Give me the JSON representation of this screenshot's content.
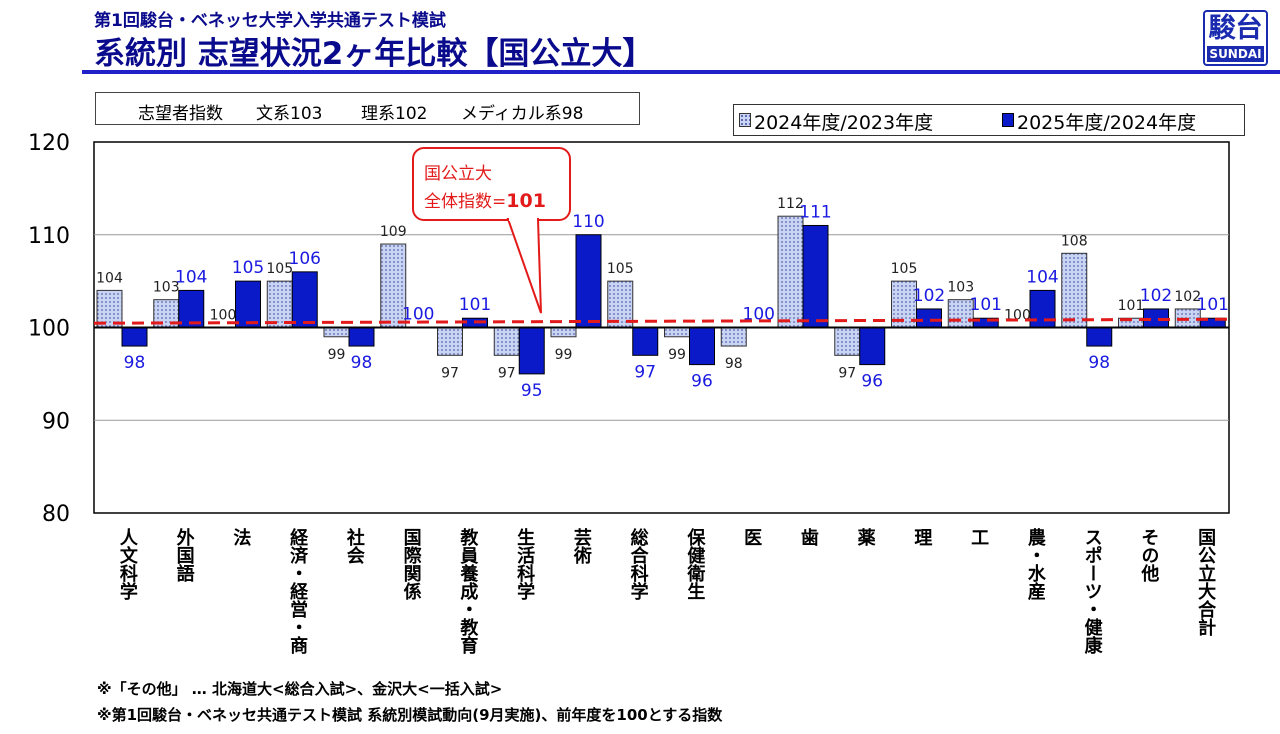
{
  "header": {
    "subtitle": "第1回駿台・ベネッセ大学入学共通テスト模試",
    "title": "系統別 志望状況2ヶ年比較【国公立大】"
  },
  "logo": {
    "big": "駿台",
    "small": "SUNDAI"
  },
  "index_box": {
    "label": "志望者指数",
    "bunkei": "文系103",
    "rikei": "理系102",
    "medical": "メディカル系98"
  },
  "legend": {
    "series1": "2024年度/2023年度",
    "series2": "2025年度/2024年度"
  },
  "callout": {
    "line1": "国公立大",
    "line2_prefix": "全体指数=",
    "line2_value": "101"
  },
  "footnotes": {
    "note1": "※「その他」 … 北海道大<総合入試>、金沢大<一括入試>",
    "note2": "※第1回駿台・ベネッセ共通テスト模試 系統別模試動向(9月実施)、前年度を100とする指数"
  },
  "colors": {
    "series1_fill": "#c9d3f4",
    "series2_fill": "#0a1ac8",
    "series2_label": "#1a1ae0",
    "reference_line": "#e31a1a",
    "title": "#0a0a8c"
  },
  "chart_data": {
    "type": "bar",
    "categories": [
      "人文科学",
      "外国語",
      "法",
      "経済・経営・商",
      "社会",
      "国際関係",
      "教員養成・教育",
      "生活科学",
      "芸術",
      "総合科学",
      "保健衛生",
      "医",
      "歯",
      "薬",
      "理",
      "工",
      "農・水産",
      "スポーツ・健康",
      "その他",
      "国公立大合計"
    ],
    "baseline": 100,
    "reference_value": 101,
    "ylim": [
      80,
      120
    ],
    "yticks": [
      80,
      90,
      100,
      110,
      120
    ],
    "grid": true,
    "legend_position": "top-right",
    "series": [
      {
        "name": "2024年度/2023年度",
        "values": [
          104,
          103,
          100,
          105,
          99,
          109,
          97,
          97,
          99,
          105,
          99,
          98,
          112,
          97,
          105,
          103,
          100,
          108,
          101,
          102
        ]
      },
      {
        "name": "2025年度/2024年度",
        "values": [
          98,
          104,
          105,
          106,
          98,
          100,
          101,
          95,
          110,
          97,
          96,
          100,
          111,
          96,
          102,
          101,
          104,
          98,
          102,
          101
        ]
      }
    ]
  }
}
